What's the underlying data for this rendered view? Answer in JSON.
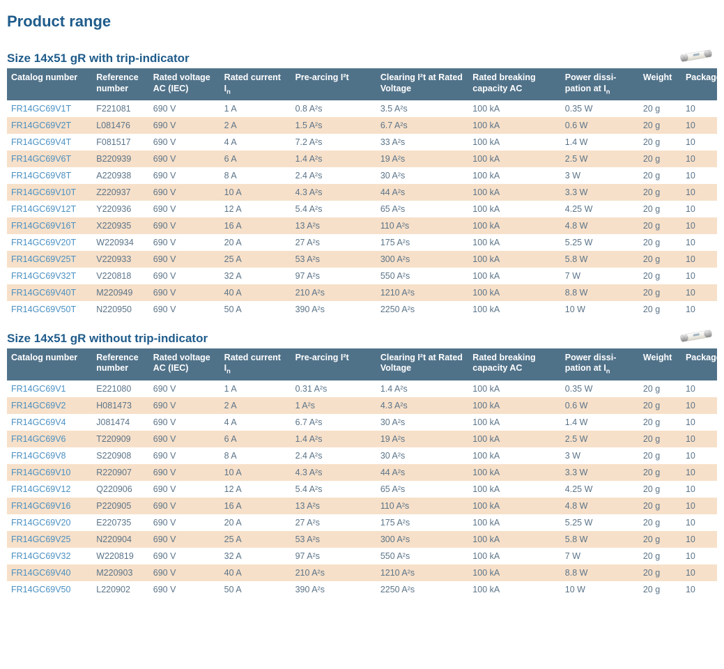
{
  "page_title": "Product range",
  "colors": {
    "heading": "#1f5c8b",
    "th_bg": "#507289",
    "th_fg": "#ffffff",
    "cell_fg": "#5b7489",
    "cat_fg": "#4a90c2",
    "row_odd_bg": "#ffffff",
    "row_even_bg": "#f7e0c9"
  },
  "col_widths_pct": [
    12,
    8,
    10,
    10,
    12,
    13,
    13,
    11,
    6,
    5
  ],
  "sections": [
    {
      "title": "Size 14x51 gR with trip-indicator",
      "headers": [
        "Catalog number",
        "Reference number",
        "Rated voltage AC (IEC)",
        "Rated current I<sub>n</sub>",
        "Pre-arcing I²t",
        "Clearing I²t at Rated Voltage",
        "Rated breaking capacity AC",
        "Power dissi-pation at I<sub>n</sub>",
        "Weight",
        "Package"
      ],
      "rows": [
        [
          "FR14GC69V1T",
          "F221081",
          "690 V",
          "1 A",
          "0.8 A²s",
          "3.5 A²s",
          "100 kA",
          "0.35 W",
          "20 g",
          "10"
        ],
        [
          "FR14GC69V2T",
          "L081476",
          "690 V",
          "2 A",
          "1.5 A²s",
          "6.7 A²s",
          "100 kA",
          "0.6 W",
          "20 g",
          "10"
        ],
        [
          "FR14GC69V4T",
          "F081517",
          "690 V",
          "4 A",
          "7.2 A²s",
          "33 A²s",
          "100 kA",
          "1.4 W",
          "20 g",
          "10"
        ],
        [
          "FR14GC69V6T",
          "B220939",
          "690 V",
          "6 A",
          "1.4 A²s",
          "19 A²s",
          "100 kA",
          "2.5 W",
          "20 g",
          "10"
        ],
        [
          "FR14GC69V8T",
          "A220938",
          "690 V",
          "8 A",
          "2.4 A²s",
          "30 A²s",
          "100 kA",
          "3 W",
          "20 g",
          "10"
        ],
        [
          "FR14GC69V10T",
          "Z220937",
          "690 V",
          "10 A",
          "4.3 A²s",
          "44 A²s",
          "100 kA",
          "3.3 W",
          "20 g",
          "10"
        ],
        [
          "FR14GC69V12T",
          "Y220936",
          "690 V",
          "12 A",
          "5.4 A²s",
          "65 A²s",
          "100 kA",
          "4.25 W",
          "20 g",
          "10"
        ],
        [
          "FR14GC69V16T",
          "X220935",
          "690 V",
          "16 A",
          "13 A²s",
          "110 A²s",
          "100 kA",
          "4.8 W",
          "20 g",
          "10"
        ],
        [
          "FR14GC69V20T",
          "W220934",
          "690 V",
          "20 A",
          "27 A²s",
          "175 A²s",
          "100 kA",
          "5.25 W",
          "20 g",
          "10"
        ],
        [
          "FR14GC69V25T",
          "V220933",
          "690 V",
          "25 A",
          "53 A²s",
          "300 A²s",
          "100 kA",
          "5.8 W",
          "20 g",
          "10"
        ],
        [
          "FR14GC69V32T",
          "V220818",
          "690 V",
          "32 A",
          "97 A²s",
          "550 A²s",
          "100 kA",
          "7 W",
          "20 g",
          "10"
        ],
        [
          "FR14GC69V40T",
          "M220949",
          "690 V",
          "40 A",
          "210 A²s",
          "1210 A²s",
          "100 kA",
          "8.8 W",
          "20 g",
          "10"
        ],
        [
          "FR14GC69V50T",
          "N220950",
          "690 V",
          "50 A",
          "390 A²s",
          "2250 A²s",
          "100 kA",
          "10 W",
          "20 g",
          "10"
        ]
      ]
    },
    {
      "title": "Size 14x51 gR without trip-indicator",
      "headers": [
        "Catalog number",
        "Reference number",
        "Rated voltage AC (IEC)",
        "Rated current I<sub>n</sub>",
        "Pre-arcing I²t",
        "Clearing I²t at Rated Voltage",
        "Rated breaking capacity AC",
        "Power dissi-pation at I<sub>n</sub>",
        "Weight",
        "Package"
      ],
      "rows": [
        [
          "FR14GC69V1",
          "E221080",
          "690 V",
          "1 A",
          "0.31 A²s",
          "1.4 A²s",
          "100 kA",
          "0.35 W",
          "20 g",
          "10"
        ],
        [
          "FR14GC69V2",
          "H081473",
          "690 V",
          "2 A",
          "1 A²s",
          "4.3 A²s",
          "100 kA",
          "0.6 W",
          "20 g",
          "10"
        ],
        [
          "FR14GC69V4",
          "J081474",
          "690 V",
          "4 A",
          "6.7 A²s",
          "30 A²s",
          "100 kA",
          "1.4 W",
          "20 g",
          "10"
        ],
        [
          "FR14GC69V6",
          "T220909",
          "690 V",
          "6 A",
          "1.4 A²s",
          "19 A²s",
          "100 kA",
          "2.5 W",
          "20 g",
          "10"
        ],
        [
          "FR14GC69V8",
          "S220908",
          "690 V",
          "8 A",
          "2.4 A²s",
          "30 A²s",
          "100 kA",
          "3 W",
          "20 g",
          "10"
        ],
        [
          "FR14GC69V10",
          "R220907",
          "690 V",
          "10 A",
          "4.3 A²s",
          "44 A²s",
          "100 kA",
          "3.3 W",
          "20 g",
          "10"
        ],
        [
          "FR14GC69V12",
          "Q220906",
          "690 V",
          "12 A",
          "5.4 A²s",
          "65 A²s",
          "100 kA",
          "4.25 W",
          "20 g",
          "10"
        ],
        [
          "FR14GC69V16",
          "P220905",
          "690 V",
          "16 A",
          "13 A²s",
          "110 A²s",
          "100 kA",
          "4.8 W",
          "20 g",
          "10"
        ],
        [
          "FR14GC69V20",
          "E220735",
          "690 V",
          "20 A",
          "27 A²s",
          "175 A²s",
          "100 kA",
          "5.25 W",
          "20 g",
          "10"
        ],
        [
          "FR14GC69V25",
          "N220904",
          "690 V",
          "25 A",
          "53 A²s",
          "300 A²s",
          "100 kA",
          "5.8 W",
          "20 g",
          "10"
        ],
        [
          "FR14GC69V32",
          "W220819",
          "690 V",
          "32 A",
          "97 A²s",
          "550 A²s",
          "100 kA",
          "7 W",
          "20 g",
          "10"
        ],
        [
          "FR14GC69V40",
          "M220903",
          "690 V",
          "40 A",
          "210 A²s",
          "1210 A²s",
          "100 kA",
          "8.8 W",
          "20 g",
          "10"
        ],
        [
          "FR14GC69V50",
          "L220902",
          "690 V",
          "50 A",
          "390 A²s",
          "2250 A²s",
          "100 kA",
          "10 W",
          "20 g",
          "10"
        ]
      ]
    }
  ]
}
